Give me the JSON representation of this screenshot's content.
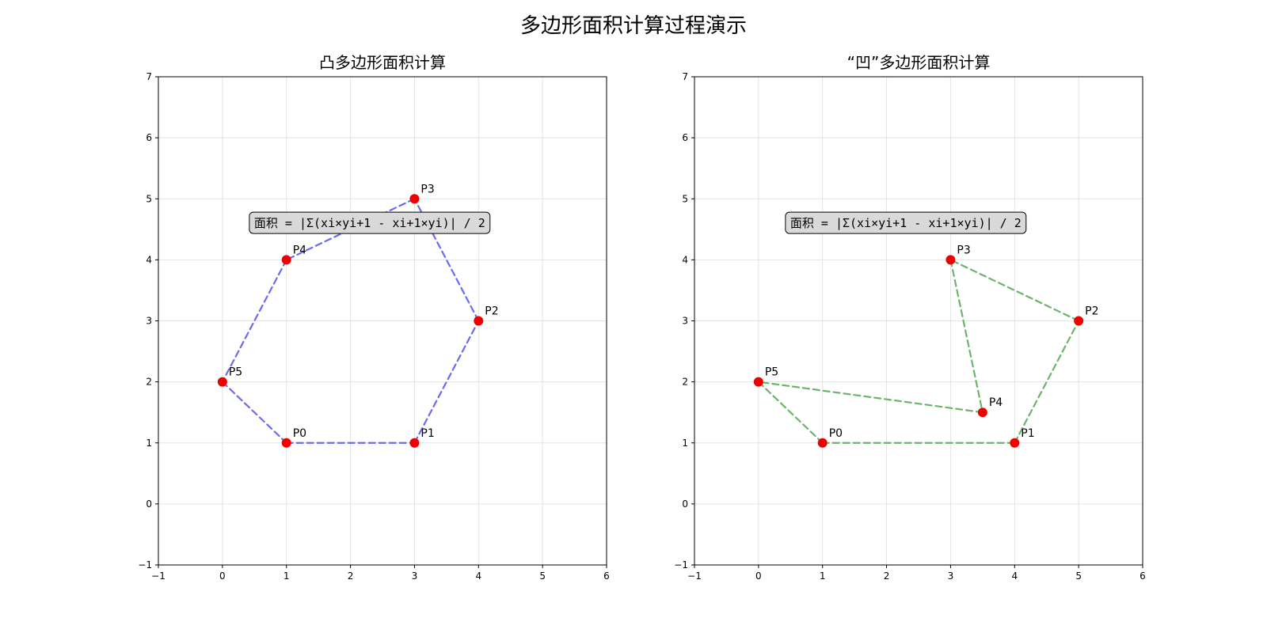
{
  "figure": {
    "title": "多边形面积计算过程演示"
  },
  "chart_data": [
    {
      "type": "line",
      "title": "凸多边形面积计算",
      "xlim": [
        -1,
        6
      ],
      "ylim": [
        -1,
        7
      ],
      "xticks": [
        -1,
        0,
        1,
        2,
        3,
        4,
        5,
        6
      ],
      "yticks": [
        -1,
        0,
        1,
        2,
        3,
        4,
        5,
        6,
        7
      ],
      "grid": true,
      "line_color": "#6b6bf0",
      "line_style": "dashed",
      "point_color": "#ee0000",
      "formula": "面积 = |Σ(xi×yi+1 - xi+1×yi)| / 2",
      "formula_position": [
        2.3,
        4.6
      ],
      "points": [
        {
          "label": "P0",
          "x": 1,
          "y": 1
        },
        {
          "label": "P1",
          "x": 3,
          "y": 1
        },
        {
          "label": "P2",
          "x": 4,
          "y": 3
        },
        {
          "label": "P3",
          "x": 3,
          "y": 5
        },
        {
          "label": "P4",
          "x": 1,
          "y": 4
        },
        {
          "label": "P5",
          "x": 0,
          "y": 2
        }
      ]
    },
    {
      "type": "line",
      "title": "“凹”多边形面积计算",
      "xlim": [
        -1,
        6
      ],
      "ylim": [
        -1,
        7
      ],
      "xticks": [
        -1,
        0,
        1,
        2,
        3,
        4,
        5,
        6
      ],
      "yticks": [
        -1,
        0,
        1,
        2,
        3,
        4,
        5,
        6,
        7
      ],
      "grid": true,
      "line_color": "#6cb36c",
      "line_style": "dashed",
      "point_color": "#ee0000",
      "formula": "面积 = |Σ(xi×yi+1 - xi+1×yi)| / 2",
      "formula_position": [
        2.3,
        4.6
      ],
      "points": [
        {
          "label": "P0",
          "x": 1,
          "y": 1
        },
        {
          "label": "P1",
          "x": 4,
          "y": 1
        },
        {
          "label": "P2",
          "x": 5,
          "y": 3
        },
        {
          "label": "P3",
          "x": 3,
          "y": 4
        },
        {
          "label": "P4",
          "x": 3.5,
          "y": 1.5
        },
        {
          "label": "P5",
          "x": 0,
          "y": 2
        }
      ]
    }
  ]
}
